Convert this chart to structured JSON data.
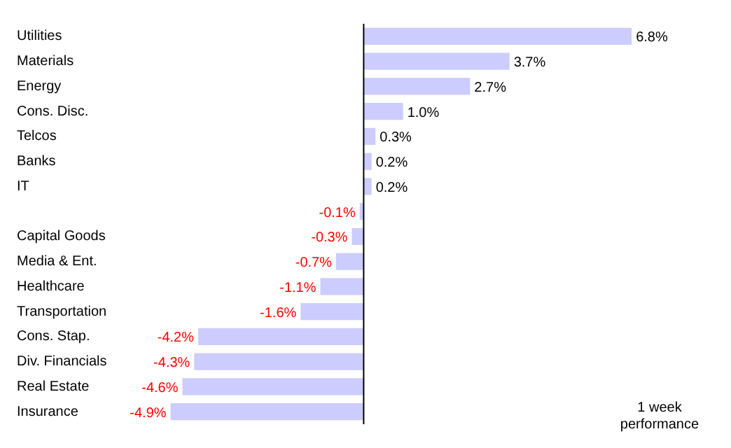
{
  "chart_data": {
    "type": "bar",
    "orientation": "horizontal",
    "categories": [
      "Utilities",
      "Materials",
      "Energy",
      "Cons. Disc.",
      "Telcos",
      "Banks",
      "IT",
      null,
      "Capital Goods",
      "Media & Ent.",
      "Healthcare",
      "Transportation",
      "Cons. Stap.",
      "Div. Financials",
      "Real Estate",
      "Insurance"
    ],
    "values": [
      6.8,
      3.7,
      2.7,
      1.0,
      0.3,
      0.2,
      0.2,
      -0.1,
      -0.3,
      -0.7,
      -1.1,
      -1.6,
      -4.2,
      -4.3,
      -4.6,
      -4.9
    ],
    "value_labels": [
      "6.8%",
      "3.7%",
      "2.7%",
      "1.0%",
      "0.3%",
      "0.2%",
      "0.2%",
      "-0.1%",
      "-0.3%",
      "-0.7%",
      "-1.1%",
      "-1.6%",
      "-4.2%",
      "-4.3%",
      "-4.6%",
      "-4.9%"
    ],
    "color": "#ccccff",
    "annotations": [
      "1 week performance"
    ],
    "grid": false,
    "legend": false
  }
}
